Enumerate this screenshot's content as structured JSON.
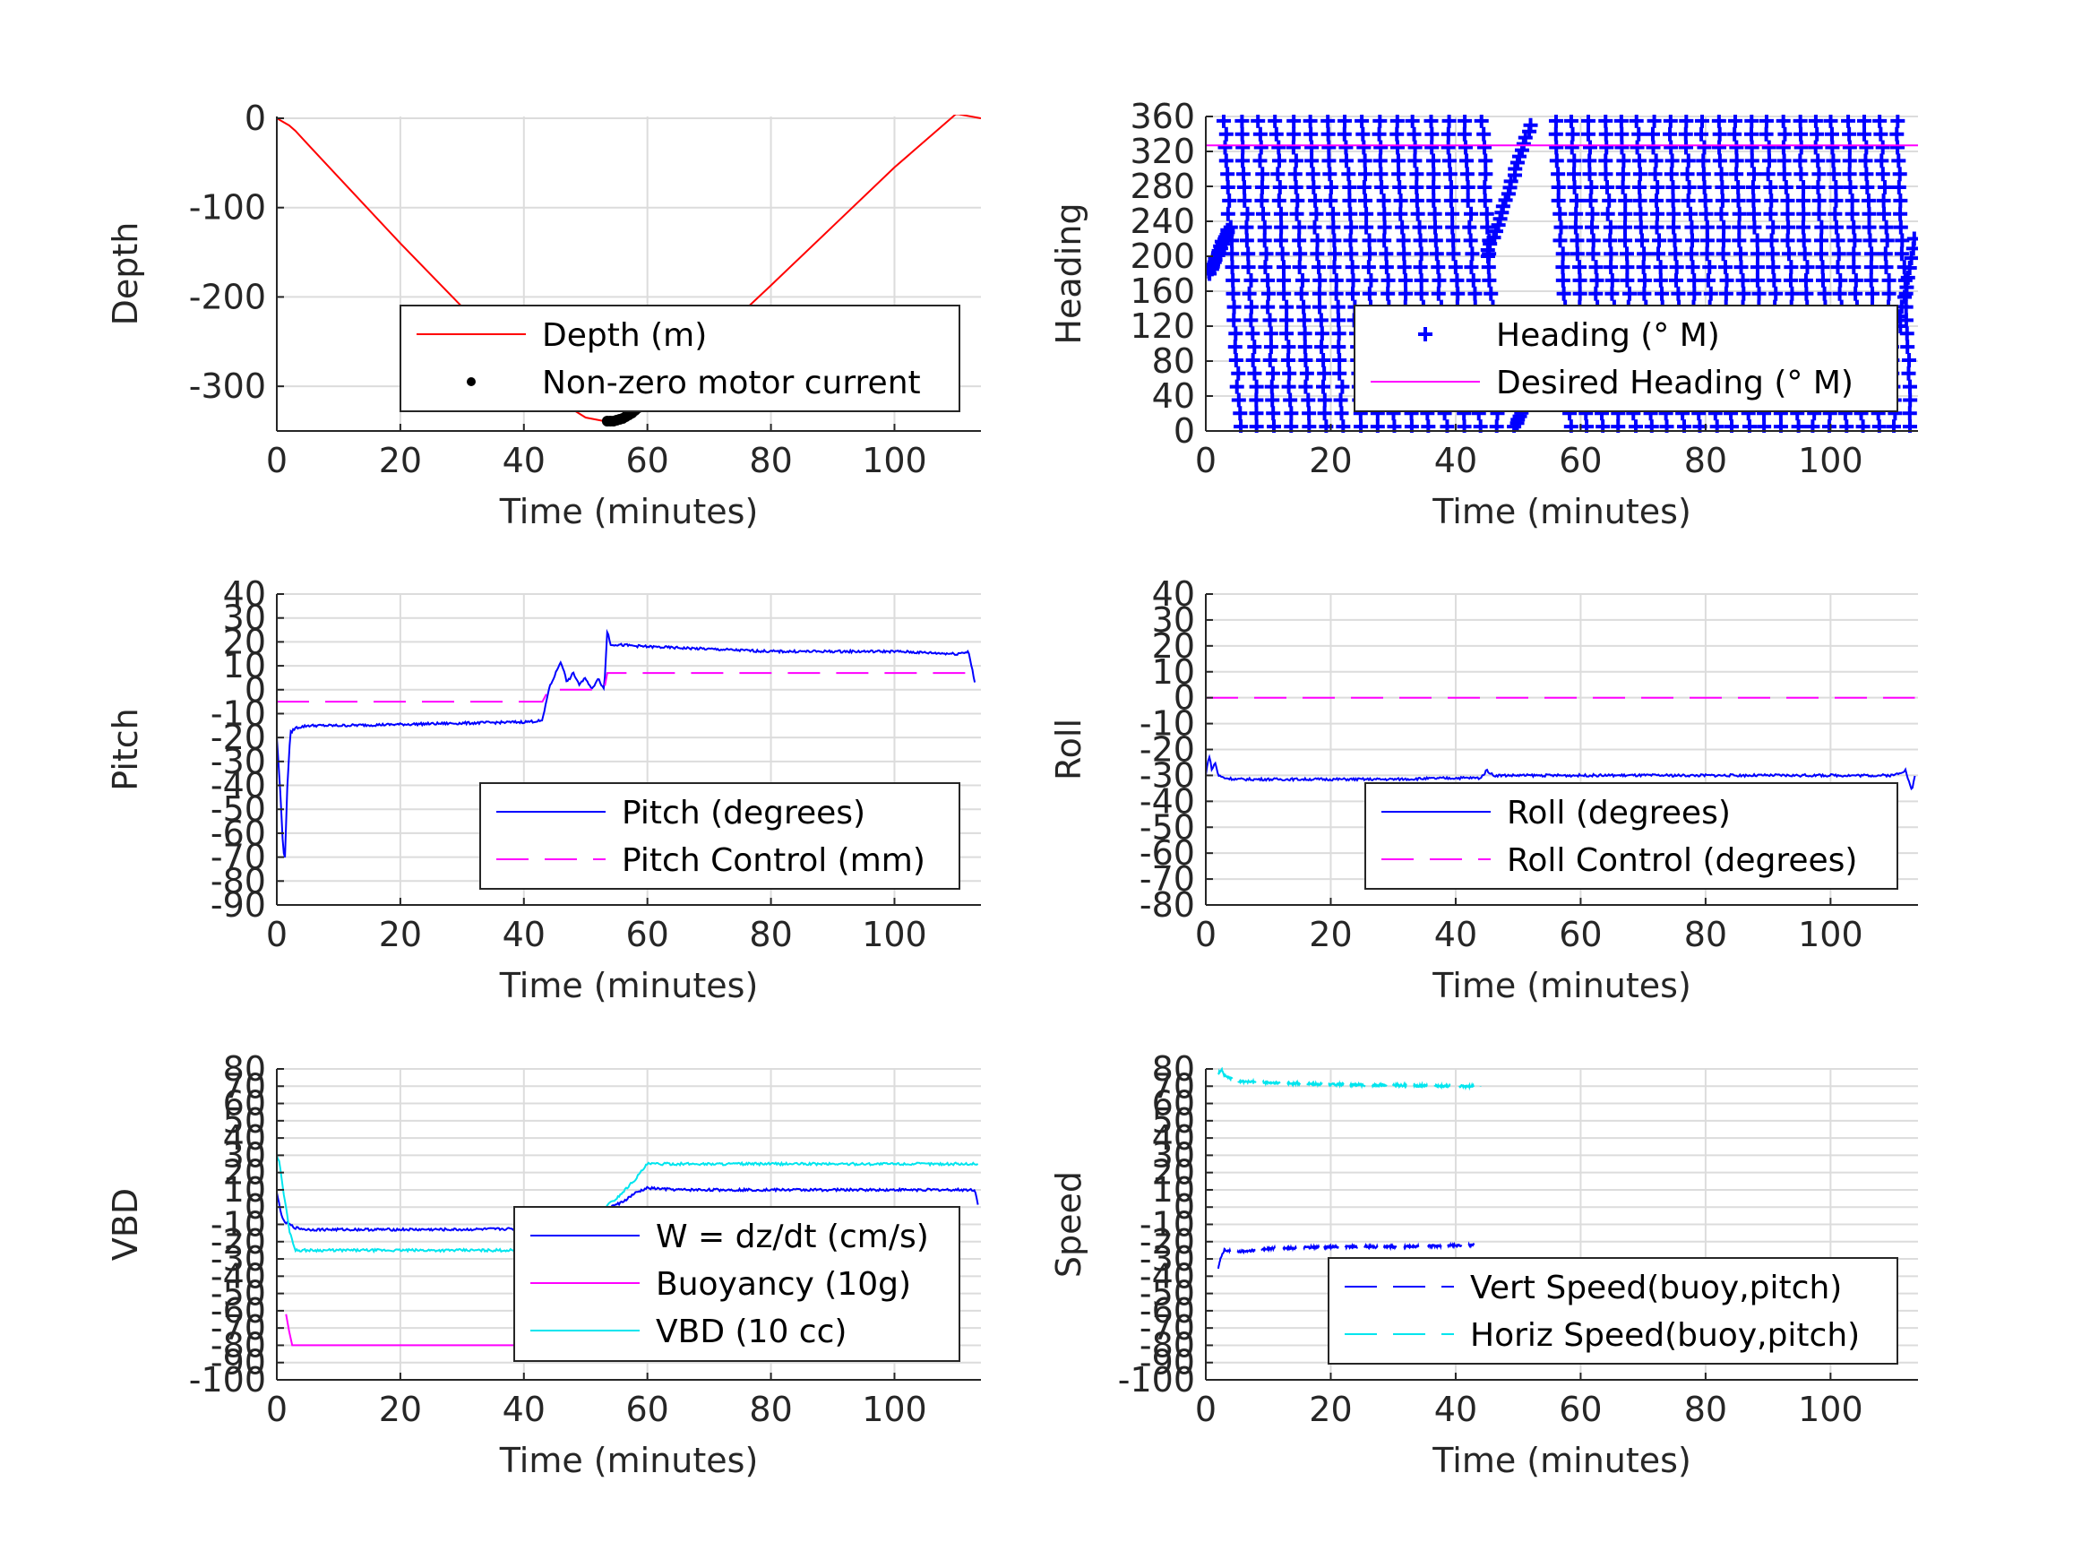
{
  "chart_data": [
    {
      "type": "line",
      "xlabel": "Time (minutes)",
      "ylabel": "Depth",
      "xlim": [
        0,
        114
      ],
      "ylim": [
        -350,
        2
      ],
      "xticks": [
        0,
        20,
        40,
        60,
        80,
        100
      ],
      "yticks": [
        0,
        -100,
        -200,
        -300
      ],
      "ytick_labels": [
        "0",
        "-100",
        "-200",
        "-300"
      ],
      "grid": true,
      "legend": {
        "placement": "inside lower right"
      },
      "series": [
        {
          "name": "Depth (m)",
          "color": "#ff0000",
          "style": "solid",
          "x": [
            0,
            1,
            2,
            3,
            5,
            10,
            20,
            30,
            40,
            47,
            50,
            53,
            54,
            55,
            57,
            60,
            70,
            80,
            90,
            100,
            110,
            114
          ],
          "y": [
            0,
            -4,
            -8,
            -14,
            -29,
            -66,
            -140,
            -211,
            -281,
            -322,
            -335,
            -339,
            -339,
            -337,
            -330,
            -316,
            -252,
            -187,
            -121,
            -55,
            5,
            0
          ]
        },
        {
          "name": "Non-zero motor current",
          "color": "#000000",
          "style": "dots",
          "x": [
            53.5,
            54,
            54.5,
            55,
            55.5,
            56,
            56.5,
            57,
            57.5,
            58,
            58.5,
            59,
            59.5
          ],
          "y": [
            -339,
            -339,
            -339,
            -338,
            -337,
            -336,
            -334,
            -332,
            -330,
            -327,
            -324,
            -321,
            -318
          ]
        }
      ]
    },
    {
      "type": "scatter",
      "xlabel": "Time (minutes)",
      "ylabel": "Heading",
      "xlim": [
        0,
        114
      ],
      "ylim": [
        0,
        360
      ],
      "xticks": [
        0,
        20,
        40,
        60,
        80,
        100
      ],
      "yticks": [
        0,
        40,
        80,
        120,
        160,
        200,
        240,
        280,
        320,
        360
      ],
      "ytick_labels": [
        "0",
        "40",
        "80",
        "120",
        "160",
        "200",
        "240",
        "280",
        "320",
        "360"
      ],
      "grid": true,
      "legend": {
        "placement": "inside lower right"
      },
      "series": [
        {
          "name": "Heading (° M)",
          "color": "#0000ff",
          "style": "plus",
          "marker_count": 1400
        },
        {
          "name": "Desired Heading (° M)",
          "color": "#ff00ff",
          "style": "solid",
          "x": [
            0,
            114
          ],
          "y": [
            327,
            327
          ]
        }
      ]
    },
    {
      "type": "line",
      "xlabel": "Time (minutes)",
      "ylabel": "Pitch",
      "xlim": [
        0,
        114
      ],
      "ylim": [
        -90,
        40
      ],
      "xticks": [
        0,
        20,
        40,
        60,
        80,
        100
      ],
      "yticks": [
        40,
        30,
        20,
        10,
        0,
        -10,
        -20,
        -30,
        -40,
        -50,
        -60,
        -70,
        -80,
        -90
      ],
      "ytick_labels": [
        "40",
        "30",
        "20",
        "10",
        "0",
        "-10",
        "-20",
        "-30",
        "-40",
        "-50",
        "-60",
        "-70",
        "-80",
        "-90"
      ],
      "grid": true,
      "legend": {
        "placement": "inside lower right"
      },
      "series": [
        {
          "name": "Pitch (degrees)",
          "color": "#0000ff",
          "style": "solid",
          "x": [
            0,
            0.5,
            1,
            1.3,
            1.7,
            2.2,
            3,
            5,
            10,
            20,
            30,
            40,
            43,
            44,
            46,
            47,
            48,
            49,
            50,
            51,
            52,
            53,
            53.5,
            54,
            60,
            70,
            80,
            90,
            100,
            110,
            112,
            113
          ],
          "y": [
            -20,
            -40,
            -65,
            -72,
            -40,
            -18,
            -16,
            -15,
            -15,
            -14.5,
            -14,
            -13.5,
            -13,
            0,
            12,
            3,
            7,
            2,
            5,
            0,
            5,
            0,
            25,
            19,
            18,
            17,
            16,
            16,
            16,
            15,
            16,
            3
          ]
        },
        {
          "name": "Pitch Control (mm)",
          "color": "#ff00ff",
          "style": "dashed",
          "x": [
            0,
            42,
            43,
            44,
            45,
            53,
            53.5,
            113
          ],
          "y": [
            -5,
            -5,
            -5,
            0,
            0,
            0,
            7,
            7
          ]
        }
      ]
    },
    {
      "type": "line",
      "xlabel": "Time (minutes)",
      "ylabel": "Roll",
      "xlim": [
        0,
        114
      ],
      "ylim": [
        -80,
        40
      ],
      "xticks": [
        0,
        20,
        40,
        60,
        80,
        100
      ],
      "yticks": [
        40,
        30,
        20,
        10,
        0,
        -10,
        -20,
        -30,
        -40,
        -50,
        -60,
        -70,
        -80
      ],
      "ytick_labels": [
        "40",
        "30",
        "20",
        "10",
        "0",
        "-10",
        "-20",
        "-30",
        "-40",
        "-50",
        "-60",
        "-70",
        "-80"
      ],
      "grid": true,
      "legend": {
        "placement": "inside lower right"
      },
      "series": [
        {
          "name": "Roll (degrees)",
          "color": "#0000ff",
          "style": "solid",
          "x": [
            0,
            0.5,
            1,
            1.5,
            2,
            3,
            5,
            10,
            20,
            30,
            40,
            44,
            45,
            46,
            50,
            60,
            70,
            80,
            90,
            100,
            110,
            112,
            113,
            113.5
          ],
          "y": [
            -30,
            -22,
            -28,
            -25,
            -30,
            -31,
            -31.5,
            -31.5,
            -31.5,
            -31.5,
            -31,
            -31,
            -28,
            -30,
            -30,
            -30,
            -30,
            -30,
            -30,
            -30,
            -30,
            -28,
            -36,
            -30
          ]
        },
        {
          "name": "Roll Control (degrees)",
          "color": "#ff00ff",
          "style": "dashed",
          "x": [
            0,
            113.5
          ],
          "y": [
            0,
            0
          ]
        }
      ]
    },
    {
      "type": "line",
      "xlabel": "Time (minutes)",
      "ylabel": "VBD",
      "xlim": [
        0,
        114
      ],
      "ylim": [
        -100,
        80
      ],
      "xticks": [
        0,
        20,
        40,
        60,
        80,
        100
      ],
      "yticks": [
        80,
        70,
        60,
        50,
        40,
        30,
        20,
        10,
        0,
        -10,
        -20,
        -30,
        -40,
        -50,
        -60,
        -70,
        -80,
        -90,
        -100
      ],
      "ytick_labels": [
        "80",
        "70",
        "60",
        "50",
        "40",
        "30",
        "20",
        "10",
        "0",
        "-10",
        "-20",
        "-30",
        "-40",
        "-50",
        "-60",
        "-70",
        "-80",
        "-90",
        "-100"
      ],
      "grid": true,
      "legend": {
        "placement": "inside lower right"
      },
      "series": [
        {
          "name": "W = dz/dt (cm/s)",
          "color": "#0000ff",
          "style": "solid",
          "x": [
            0,
            0.5,
            1,
            2,
            3,
            5,
            10,
            20,
            30,
            40,
            44,
            48,
            52,
            56,
            58,
            60,
            65,
            70,
            80,
            90,
            100,
            110,
            113,
            113.5
          ],
          "y": [
            8,
            0,
            -8,
            -10,
            -12,
            -13,
            -13,
            -13,
            -13,
            -12.5,
            -11,
            -8,
            -3,
            3,
            8,
            11,
            10,
            10,
            10,
            10,
            10,
            10,
            10,
            2
          ]
        },
        {
          "name": "Buoyancy (10g)",
          "color": "#ff00ff",
          "style": "solid",
          "x": [
            1.5,
            2,
            2.5,
            5,
            10,
            20,
            30,
            40,
            43.5
          ],
          "y": [
            -62,
            -72,
            -80,
            -80,
            -80,
            -80,
            -80,
            -80,
            -80
          ]
        },
        {
          "name": "VBD (10 cc)",
          "color": "#00e5ee",
          "style": "solid",
          "x": [
            0,
            0.5,
            1,
            1.5,
            2,
            3,
            10,
            20,
            30,
            40,
            43.5,
            45,
            55,
            58,
            60,
            70,
            80,
            90,
            100,
            110,
            113.5
          ],
          "y": [
            30,
            25,
            10,
            0,
            -13,
            -25,
            -25,
            -25,
            -25,
            -25,
            -25,
            -21,
            5,
            16,
            25,
            25,
            25,
            25,
            25,
            25,
            25
          ]
        }
      ]
    },
    {
      "type": "line",
      "xlabel": "Time (minutes)",
      "ylabel": "Speed",
      "xlim": [
        0,
        114
      ],
      "ylim": [
        -100,
        80
      ],
      "xticks": [
        0,
        20,
        40,
        60,
        80,
        100
      ],
      "yticks": [
        80,
        70,
        60,
        50,
        40,
        30,
        20,
        10,
        0,
        -10,
        -20,
        -30,
        -40,
        -50,
        -60,
        -70,
        -80,
        -90,
        -100
      ],
      "ytick_labels": [
        "80",
        "70",
        "60",
        "50",
        "40",
        "30",
        "20",
        "10",
        "0",
        "-10",
        "-20",
        "-30",
        "-40",
        "-50",
        "-60",
        "-70",
        "-80",
        "-90",
        "-100"
      ],
      "grid": true,
      "legend": {
        "placement": "inside lower right"
      },
      "series": [
        {
          "name": "Vert Speed(buoy,pitch)",
          "color": "#0000ff",
          "style": "dashed",
          "x": [
            2,
            2.5,
            3,
            5,
            10,
            20,
            30,
            40,
            43
          ],
          "y": [
            -35,
            -28,
            -25,
            -26,
            -24,
            -23,
            -23,
            -22,
            -22
          ]
        },
        {
          "name": "Horiz Speed(buoy,pitch)",
          "color": "#00e5ee",
          "style": "dashed",
          "x": [
            2,
            2.5,
            3,
            5,
            10,
            20,
            30,
            40,
            44
          ],
          "y": [
            77,
            80,
            76,
            73,
            72,
            71,
            70.5,
            70,
            70
          ]
        }
      ]
    }
  ]
}
